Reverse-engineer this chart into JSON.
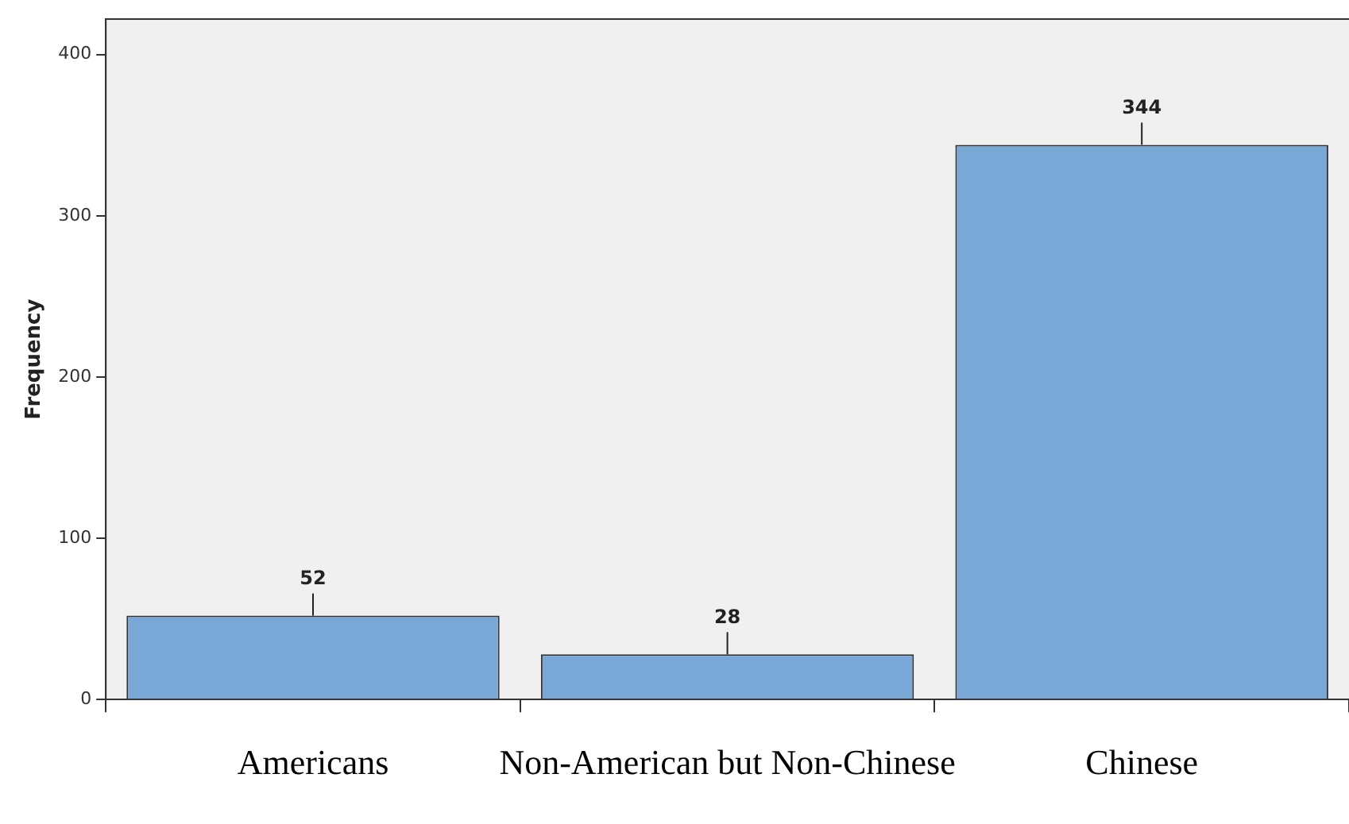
{
  "chart_data": {
    "type": "bar",
    "ylabel": "Frequency",
    "categories": [
      "Americans",
      "Non-American but Non-Chinese",
      "Chinese"
    ],
    "values": [
      52,
      28,
      344
    ],
    "color": "#7aa8d6",
    "ylim": [
      0,
      422
    ],
    "yticks": [
      0,
      100,
      200,
      300,
      400
    ],
    "grid": false,
    "data_labels": true
  }
}
